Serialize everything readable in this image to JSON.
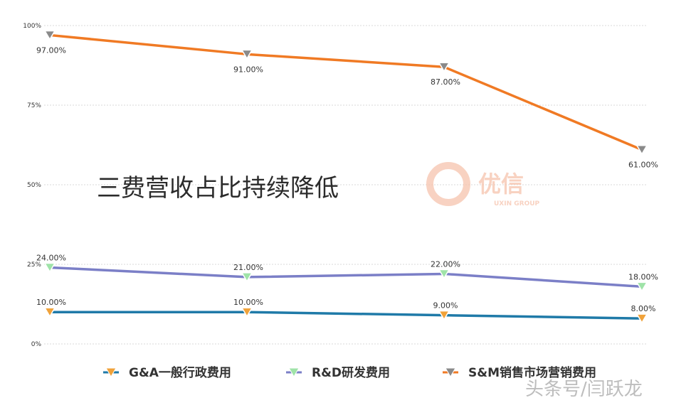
{
  "chart_data": {
    "type": "line",
    "title": "三费营收占比持续降低",
    "categories": [
      "",
      "",
      "",
      ""
    ],
    "ylim": [
      0,
      100
    ],
    "yticks": [
      0,
      25,
      50,
      75,
      100
    ],
    "ytick_labels": [
      "0%",
      "25%",
      "50%",
      "75%",
      "100%"
    ],
    "grid": true,
    "legend_position": "bottom",
    "series": [
      {
        "name": "G&A一般行政费用",
        "values": [
          10,
          10,
          9,
          8
        ],
        "labels": [
          "10.00%",
          "10.00%",
          "9.00%",
          "8.00%"
        ],
        "line_color": "#1f7aa8",
        "marker_color": "#f0a23a"
      },
      {
        "name": "R&D研发费用",
        "values": [
          24,
          21,
          22,
          18
        ],
        "labels": [
          "24.00%",
          "21.00%",
          "22.00%",
          "18.00%"
        ],
        "line_color": "#7b7fc7",
        "marker_color": "#9fe3a8"
      },
      {
        "name": "S&M销售市场营销费用",
        "values": [
          97,
          91,
          87,
          61
        ],
        "labels": [
          "97.00%",
          "91.00%",
          "87.00%",
          "61.00%"
        ],
        "line_color": "#f07a24",
        "marker_color": "#8a8a8a"
      }
    ]
  },
  "watermark": {
    "logo_text": "优信",
    "logo_subtext": "UXIN GROUP",
    "corner_text": "头条号/闫跃龙"
  }
}
